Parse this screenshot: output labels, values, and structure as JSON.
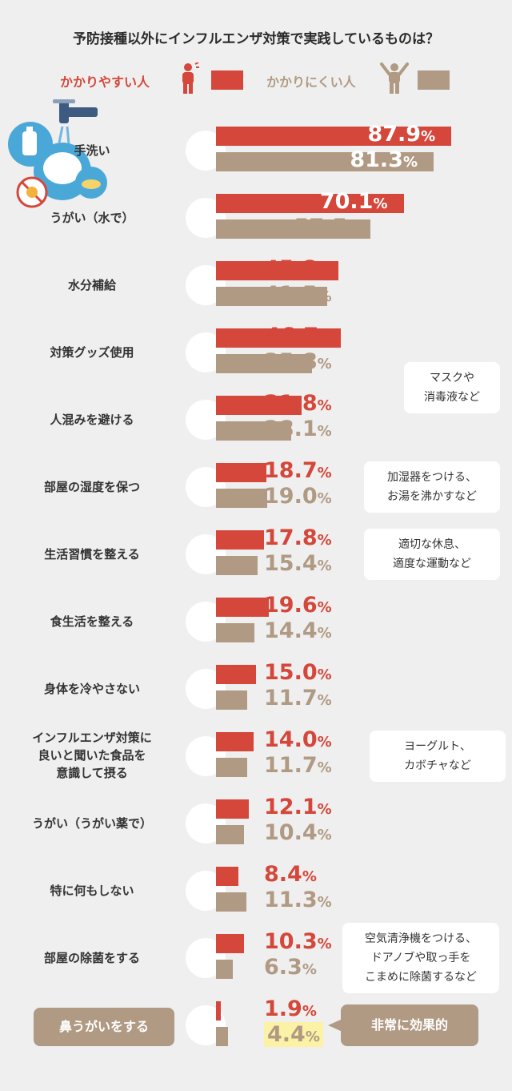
{
  "chart_data": {
    "type": "bar",
    "orientation": "horizontal",
    "title": "予防接種以外にインフルエンザ対策で実践しているものは？",
    "legend_placement": "top",
    "unit": "%",
    "categories": [
      "手洗い",
      "うがい（水で）",
      "水分補給",
      "対策グッズ使用",
      "人混みを避ける",
      "部屋の湿度を保つ",
      "生活習慣を整える",
      "食生活を整える",
      "身体を冷やさない",
      "インフルエンザ対策に良いと聞いた食品を意識して摂る",
      "うがい（うがい薬で）",
      "特に何もしない",
      "部屋の除菌をする",
      "鼻うがいをする"
    ],
    "series": [
      {
        "name": "かかりやすい人",
        "color": "#d4473a",
        "values": [
          87.9,
          70.1,
          45.8,
          46.7,
          31.8,
          18.7,
          17.8,
          19.6,
          15.0,
          14.0,
          12.1,
          8.4,
          10.3,
          1.9
        ],
        "labels": [
          "87.9",
          "70.1",
          "45.8",
          "46.7",
          "31.8",
          "18.7",
          "17.8",
          "19.6",
          "15.0",
          "14.0",
          "12.1",
          "8.4",
          "10.3",
          "1.9"
        ]
      },
      {
        "name": "かかりにくい人",
        "color": "#b09a83",
        "values": [
          81.3,
          57.5,
          41.5,
          35.8,
          28.1,
          19.0,
          15.4,
          14.4,
          11.7,
          11.7,
          10.4,
          11.3,
          6.3,
          4.4
        ],
        "labels": [
          "81.3",
          "57.5",
          "41.5",
          "35.8",
          "28.1",
          "19.0",
          "15.4",
          "14.4",
          "11.7",
          "11.7",
          "10.4",
          "11.3",
          "6.3",
          "4.4"
        ]
      }
    ],
    "xlim": [
      0,
      100
    ],
    "grid": false,
    "highlight_icons": [
      "hand-washing",
      "water-glass",
      "water-cup-straw",
      "masked-face",
      "crowd",
      "thermometer",
      "person-sleeping",
      "vegetables",
      "hot-soup",
      "yogurt",
      "gargle-cup",
      "person-on-sofa",
      "germ-prohibited",
      "nose"
    ],
    "annotations": [
      {
        "row": 3,
        "lines": [
          "マスクや",
          "消毒液など"
        ]
      },
      {
        "row": 5,
        "lines": [
          "加湿器をつける、",
          "お湯を沸かすなど"
        ]
      },
      {
        "row": 6,
        "lines": [
          "適切な休息、",
          "適度な運動など"
        ]
      },
      {
        "row": 9,
        "lines": [
          "ヨーグルト、",
          "カボチャなど"
        ]
      },
      {
        "row": 12,
        "lines": [
          "空気清浄機をつける、",
          "ドアノブや取っ手を",
          "こまめに除菌するなど"
        ]
      }
    ],
    "callout": "非常に効果的",
    "pct_symbol": "%"
  },
  "legend": {
    "high_label": "かかりやすい人",
    "low_label": "かかりにくい人",
    "high_color": "#d4473a",
    "low_color": "#b09a83",
    "high_icon": "standing-person-sick-icon",
    "low_icon": "standing-person-cheer-icon"
  },
  "decorations": {
    "header_illustration": "hand-washing-faucet-illustration"
  }
}
